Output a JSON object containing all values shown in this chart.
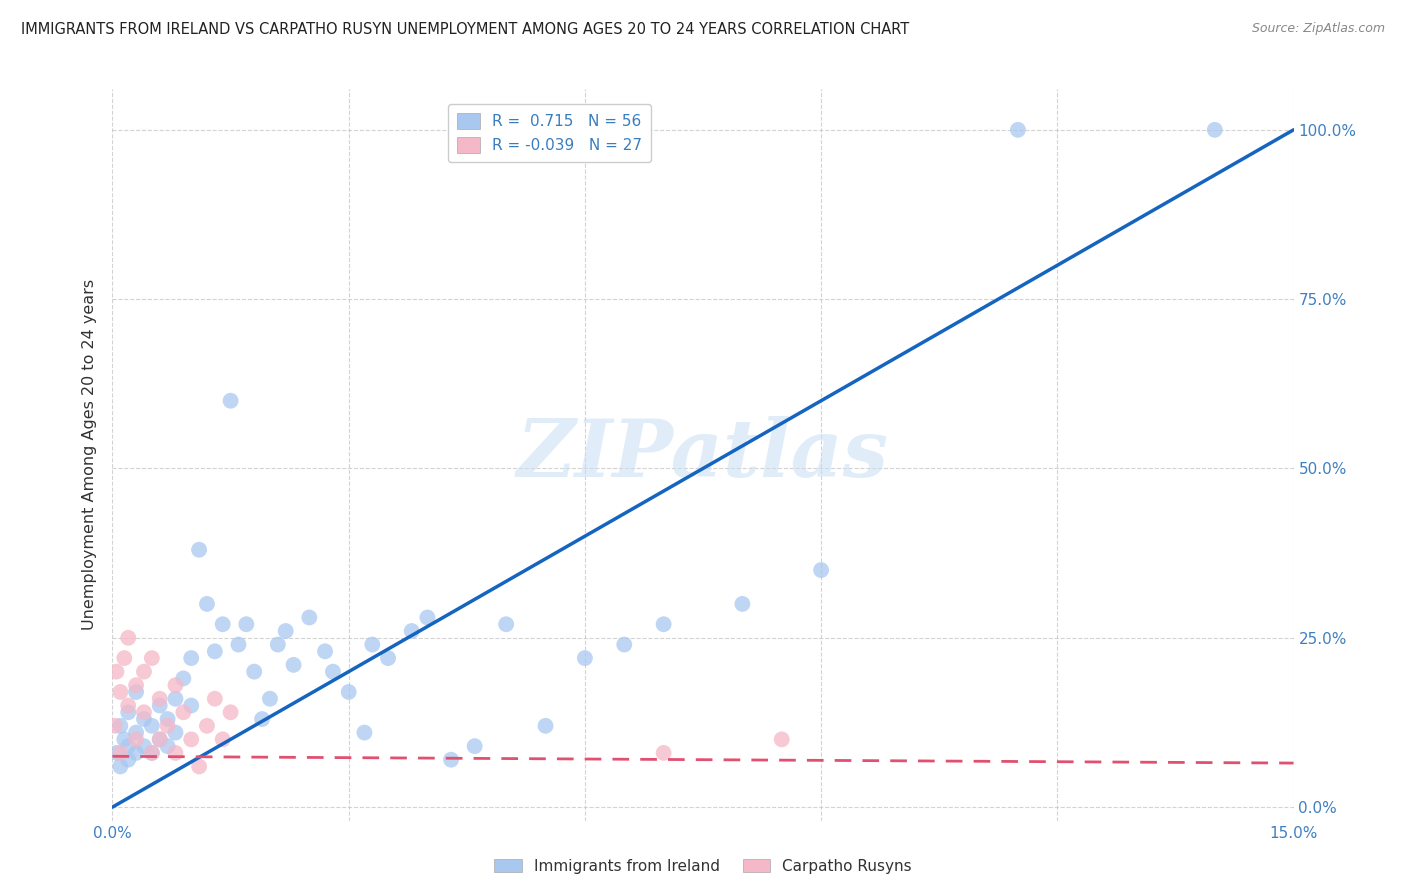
{
  "title": "IMMIGRANTS FROM IRELAND VS CARPATHO RUSYN UNEMPLOYMENT AMONG AGES 20 TO 24 YEARS CORRELATION CHART",
  "source": "Source: ZipAtlas.com",
  "ylabel": "Unemployment Among Ages 20 to 24 years",
  "xlim": [
    0.0,
    0.15
  ],
  "ylim": [
    -0.02,
    1.06
  ],
  "series1_name": "Immigrants from Ireland",
  "series1_R": 0.715,
  "series1_N": 56,
  "series1_color": "#a8c8f0",
  "series1_line_color": "#1565c0",
  "series2_name": "Carpatho Rusyns",
  "series2_R": -0.039,
  "series2_N": 27,
  "series2_color": "#f4b8c8",
  "series2_line_color": "#e05070",
  "background_color": "#ffffff",
  "grid_color": "#c8c8c8",
  "watermark_text": "ZIPatlas",
  "ireland_x": [
    0.0005,
    0.001,
    0.001,
    0.0015,
    0.002,
    0.002,
    0.002,
    0.003,
    0.003,
    0.003,
    0.004,
    0.004,
    0.005,
    0.005,
    0.006,
    0.006,
    0.007,
    0.007,
    0.008,
    0.008,
    0.009,
    0.01,
    0.01,
    0.011,
    0.012,
    0.013,
    0.014,
    0.015,
    0.016,
    0.017,
    0.018,
    0.019,
    0.02,
    0.021,
    0.022,
    0.023,
    0.025,
    0.027,
    0.028,
    0.03,
    0.032,
    0.033,
    0.035,
    0.038,
    0.04,
    0.043,
    0.046,
    0.05,
    0.055,
    0.06,
    0.065,
    0.07,
    0.08,
    0.09,
    0.115,
    0.14
  ],
  "ireland_y": [
    0.08,
    0.06,
    0.12,
    0.1,
    0.09,
    0.14,
    0.07,
    0.11,
    0.17,
    0.08,
    0.13,
    0.09,
    0.12,
    0.08,
    0.15,
    0.1,
    0.13,
    0.09,
    0.16,
    0.11,
    0.19,
    0.22,
    0.15,
    0.38,
    0.3,
    0.23,
    0.27,
    0.6,
    0.24,
    0.27,
    0.2,
    0.13,
    0.16,
    0.24,
    0.26,
    0.21,
    0.28,
    0.23,
    0.2,
    0.17,
    0.11,
    0.24,
    0.22,
    0.26,
    0.28,
    0.07,
    0.09,
    0.27,
    0.12,
    0.22,
    0.24,
    0.27,
    0.3,
    0.35,
    1.0,
    1.0
  ],
  "rusyn_x": [
    0.0003,
    0.0005,
    0.001,
    0.001,
    0.0015,
    0.002,
    0.002,
    0.003,
    0.003,
    0.004,
    0.004,
    0.005,
    0.005,
    0.006,
    0.006,
    0.007,
    0.008,
    0.008,
    0.009,
    0.01,
    0.011,
    0.012,
    0.013,
    0.014,
    0.015,
    0.07,
    0.085
  ],
  "rusyn_y": [
    0.12,
    0.2,
    0.08,
    0.17,
    0.22,
    0.15,
    0.25,
    0.18,
    0.1,
    0.14,
    0.2,
    0.08,
    0.22,
    0.16,
    0.1,
    0.12,
    0.18,
    0.08,
    0.14,
    0.1,
    0.06,
    0.12,
    0.16,
    0.1,
    0.14,
    0.08,
    0.1
  ],
  "ireland_trendline_x": [
    0.0,
    0.15
  ],
  "ireland_trendline_y": [
    0.0,
    1.0
  ],
  "rusyn_trendline_x": [
    0.0,
    0.15
  ],
  "rusyn_trendline_y": [
    0.075,
    0.065
  ]
}
